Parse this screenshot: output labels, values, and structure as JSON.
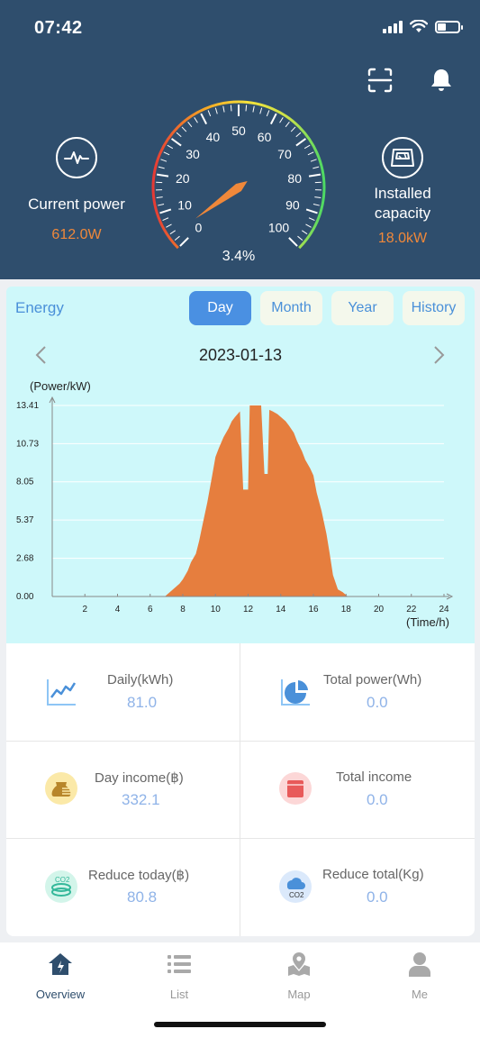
{
  "status_bar": {
    "time": "07:42"
  },
  "header": {
    "current_power": {
      "label": "Current power",
      "value": "612.0W"
    },
    "installed_capacity": {
      "label_line1": "Installed",
      "label_line2": "capacity",
      "value": "18.0kW"
    },
    "gauge": {
      "ticks": [
        "0",
        "10",
        "20",
        "30",
        "40",
        "50",
        "60",
        "70",
        "80",
        "90",
        "100"
      ],
      "percent_label": "3.4%",
      "percent": 3.4
    },
    "icons": [
      "scan-icon",
      "bell-icon",
      "pulse-icon",
      "panel-icon"
    ]
  },
  "energy": {
    "title": "Energy",
    "tabs": [
      {
        "label": "Day",
        "active": true
      },
      {
        "label": "Month",
        "active": false
      },
      {
        "label": "Year",
        "active": false
      },
      {
        "label": "History",
        "active": false
      }
    ],
    "date": "2023-01-13"
  },
  "chart_data": {
    "type": "area",
    "title": "",
    "ylabel": "(Power/kW)",
    "xlabel": "(Time/h)",
    "xlim": [
      0,
      24
    ],
    "ylim": [
      0,
      13.41
    ],
    "x_ticks": [
      "2",
      "4",
      "6",
      "8",
      "10",
      "12",
      "14",
      "16",
      "18",
      "20",
      "22",
      "24"
    ],
    "y_ticks": [
      "0.00",
      "2.68",
      "5.37",
      "8.05",
      "10.73",
      "13.41"
    ],
    "grid": true,
    "color": "#e67e3e",
    "series": [
      {
        "x": [
          6.9,
          7.2,
          7.5,
          7.8,
          8.0,
          8.3,
          8.5,
          8.8,
          9.0,
          9.2,
          9.5,
          9.8,
          10.0,
          10.2,
          10.5,
          10.8,
          11.0,
          11.2,
          11.5,
          11.7,
          11.8,
          12.0,
          12.1,
          12.3,
          12.5,
          12.8,
          13.0,
          13.2,
          13.3,
          13.5,
          13.8,
          14.0,
          14.3,
          14.5,
          14.8,
          15.0,
          15.3,
          15.5,
          15.8,
          16.0,
          16.2,
          16.5,
          16.8,
          17.0,
          17.2,
          17.5,
          17.8,
          18.0,
          18.1
        ],
        "y": [
          0.0,
          0.3,
          0.6,
          0.9,
          1.2,
          1.8,
          2.4,
          3.0,
          3.9,
          5.0,
          6.6,
          8.5,
          9.8,
          10.4,
          11.2,
          11.8,
          12.3,
          12.6,
          13.0,
          7.5,
          7.5,
          7.5,
          13.41,
          13.41,
          13.41,
          13.41,
          8.6,
          8.6,
          13.1,
          13.0,
          12.8,
          12.6,
          12.3,
          12.0,
          11.5,
          10.9,
          10.2,
          9.6,
          9.0,
          8.5,
          7.3,
          6.0,
          4.4,
          3.0,
          1.5,
          0.5,
          0.3,
          0.1,
          0.0
        ]
      }
    ]
  },
  "stats": [
    {
      "title": "Daily(kWh)",
      "value": "81.0",
      "icon": "line-chart-icon"
    },
    {
      "title": "Total power(Wh)",
      "value": "0.0",
      "icon": "pie-chart-icon"
    },
    {
      "title": "Day income(฿)",
      "value": "332.1",
      "icon": "money-bag-icon"
    },
    {
      "title": "Total income",
      "value": "0.0",
      "icon": "wallet-icon"
    },
    {
      "title": "Reduce today(฿)",
      "value": "80.8",
      "icon": "co2-reduce-icon"
    },
    {
      "title": "Reduce total(Kg)",
      "value": "0.0",
      "icon": "co2-cloud-icon"
    }
  ],
  "nav": [
    {
      "label": "Overview",
      "icon": "home-icon",
      "active": true
    },
    {
      "label": "List",
      "icon": "list-icon",
      "active": false
    },
    {
      "label": "Map",
      "icon": "map-icon",
      "active": false
    },
    {
      "label": "Me",
      "icon": "person-icon",
      "active": false
    }
  ]
}
